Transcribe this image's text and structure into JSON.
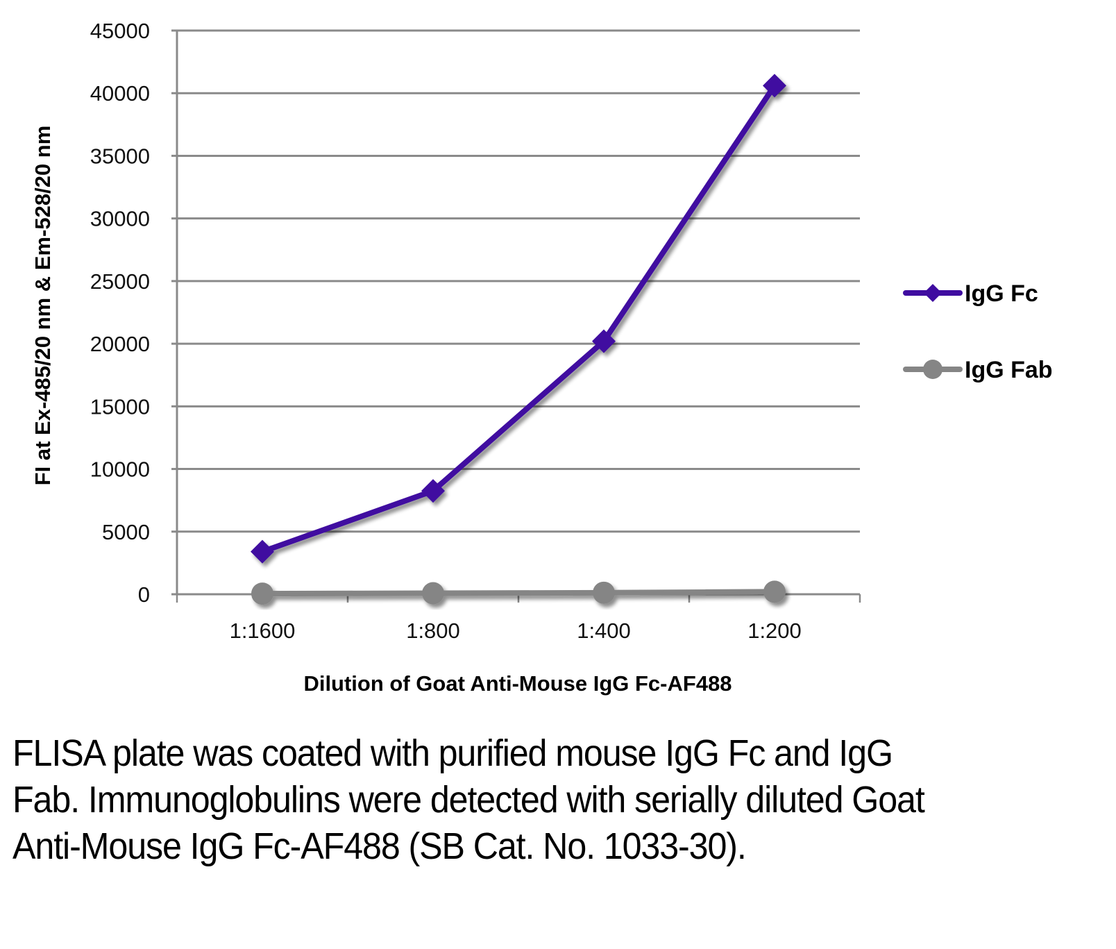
{
  "chart_data": {
    "type": "line",
    "title": "",
    "xlabel": "Dilution of Goat Anti-Mouse IgG Fc-AF488",
    "ylabel": "FI at Ex-485/20 nm & Em-528/20 nm",
    "categories": [
      "1:1600",
      "1:800",
      "1:400",
      "1:200"
    ],
    "ylim": [
      0,
      45000
    ],
    "yticks": [
      0,
      5000,
      10000,
      15000,
      20000,
      25000,
      30000,
      35000,
      40000,
      45000
    ],
    "grid": true,
    "legend_position": "right",
    "series": [
      {
        "name": "IgG Fc",
        "color": "#3F0CA0",
        "marker": "diamond",
        "values": [
          3400,
          8250,
          20200,
          40600
        ]
      },
      {
        "name": "IgG Fab",
        "color": "#858585",
        "marker": "circle",
        "values": [
          50,
          80,
          120,
          200
        ]
      }
    ]
  },
  "caption": "FLISA plate was coated with purified mouse IgG Fc and IgG Fab.  Immunoglobulins were detected with serially diluted Goat Anti-Mouse IgG Fc-AF488 (SB Cat. No. 1033-30)."
}
